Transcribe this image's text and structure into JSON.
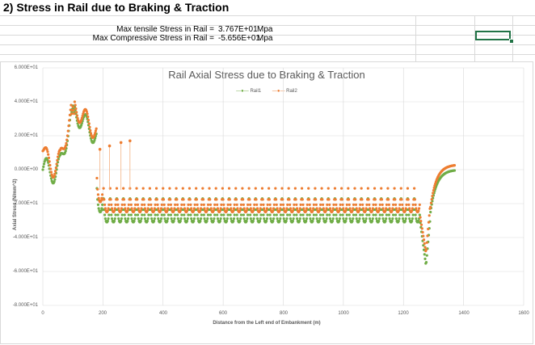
{
  "sheet": {
    "heading": "2) Stress in Rail due to Braking & Traction",
    "stats": [
      {
        "label": "Max tensile Stress in Rail =",
        "value": "3.767E+01",
        "unit": "Mpa"
      },
      {
        "label": "Max Compressive Stress in Rail =",
        "value": "-5.656E+01",
        "unit": "Mpa"
      }
    ]
  },
  "chart_data": {
    "type": "scatter",
    "title": "Rail Axial Stress due to Braking & Traction",
    "xlabel": "Distance from the Left end of Embankment (m)",
    "ylabel": "Axial Stress (N/mm^2)",
    "xlim": [
      0,
      1600
    ],
    "ylim": [
      -80,
      60
    ],
    "x_ticks": [
      "0",
      "200",
      "400",
      "600",
      "800",
      "1000",
      "1200",
      "1400",
      "1600"
    ],
    "y_ticks": [
      "6.000E+01",
      "4.000E+01",
      "2.000E+01",
      "0.000E+00",
      "-2.000E+01",
      "-4.000E+01",
      "-6.000E+01",
      "-8.000E+01"
    ],
    "legend": [
      "Rail1",
      "Rail2"
    ],
    "legend_position": "top",
    "grid": true,
    "colors": {
      "Rail1": "#70ad47",
      "Rail2": "#ed7d31"
    },
    "series": [
      {
        "name": "Rail1",
        "x": [
          0,
          20,
          40,
          60,
          80,
          100,
          120,
          140,
          160,
          175,
          180,
          200,
          300,
          400,
          500,
          600,
          700,
          800,
          900,
          1000,
          1100,
          1200,
          1250,
          1270,
          1280,
          1300,
          1330,
          1370
        ],
        "values": [
          0,
          0,
          3,
          5,
          15,
          37.67,
          25,
          18,
          20,
          -22,
          -20,
          -28,
          -28,
          -29,
          -29,
          -29,
          -29,
          -29,
          -29,
          -29,
          -29,
          -29,
          -35,
          -56.56,
          -30,
          -10,
          -2,
          0
        ]
      },
      {
        "name": "Rail2",
        "x": [
          0,
          20,
          40,
          60,
          80,
          100,
          120,
          140,
          160,
          175,
          180,
          200,
          300,
          400,
          500,
          600,
          700,
          800,
          900,
          1000,
          1100,
          1200,
          1250,
          1270,
          1280,
          1300,
          1330,
          1370
        ],
        "values": [
          9,
          4,
          2,
          6,
          18,
          35,
          28,
          20,
          16,
          -18,
          -14,
          -24,
          -25,
          -26,
          -26,
          -26,
          -26,
          -26,
          -26,
          -26,
          -26,
          -26,
          -31,
          -52,
          -27,
          -8,
          -1,
          0
        ]
      }
    ],
    "annotations": [
      "Rail2 isolated points near x=220,260,290 at ~15-17"
    ]
  }
}
